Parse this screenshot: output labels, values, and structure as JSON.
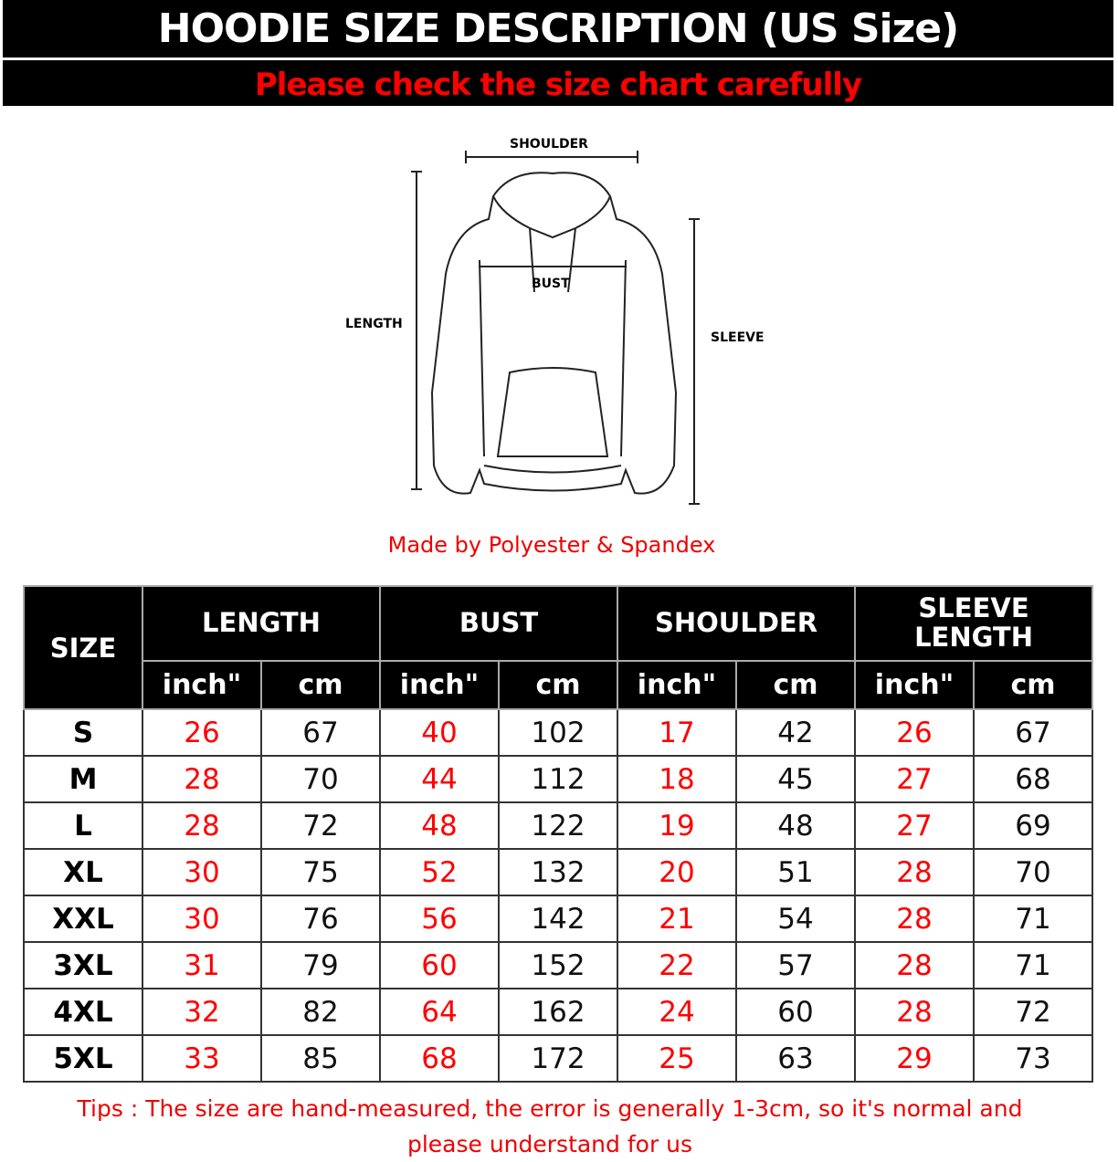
{
  "header": {
    "title": "HOODIE SIZE DESCRIPTION (US Size)",
    "subtitle": "Please check the size chart carefully"
  },
  "diagram": {
    "shoulder": "SHOULDER",
    "bust": "BUST",
    "length": "LENGTH",
    "sleeve": "SLEEVE"
  },
  "material": "Made by Polyester & Spandex",
  "table": {
    "size_header": "SIZE",
    "groups": [
      "LENGTH",
      "BUST",
      "SHOULDER",
      "SLEEVE LENGTH"
    ],
    "units": [
      "inch\"",
      "cm"
    ],
    "rows": [
      [
        "S",
        "26",
        "67",
        "40",
        "102",
        "17",
        "42",
        "26",
        "67"
      ],
      [
        "M",
        "28",
        "70",
        "44",
        "112",
        "18",
        "45",
        "27",
        "68"
      ],
      [
        "L",
        "28",
        "72",
        "48",
        "122",
        "19",
        "48",
        "27",
        "69"
      ],
      [
        "XL",
        "30",
        "75",
        "52",
        "132",
        "20",
        "51",
        "28",
        "70"
      ],
      [
        "XXL",
        "30",
        "76",
        "56",
        "142",
        "21",
        "54",
        "28",
        "71"
      ],
      [
        "3XL",
        "31",
        "79",
        "60",
        "152",
        "22",
        "57",
        "28",
        "71"
      ],
      [
        "4XL",
        "32",
        "82",
        "64",
        "162",
        "24",
        "60",
        "28",
        "72"
      ],
      [
        "5XL",
        "33",
        "85",
        "68",
        "172",
        "25",
        "63",
        "29",
        "73"
      ]
    ]
  },
  "tips": "Tips : The size are hand-measured, the error is generally 1-3cm, so it's normal and please understand for us",
  "colors": {
    "accent": "#ff0000",
    "banner": "#000000"
  }
}
